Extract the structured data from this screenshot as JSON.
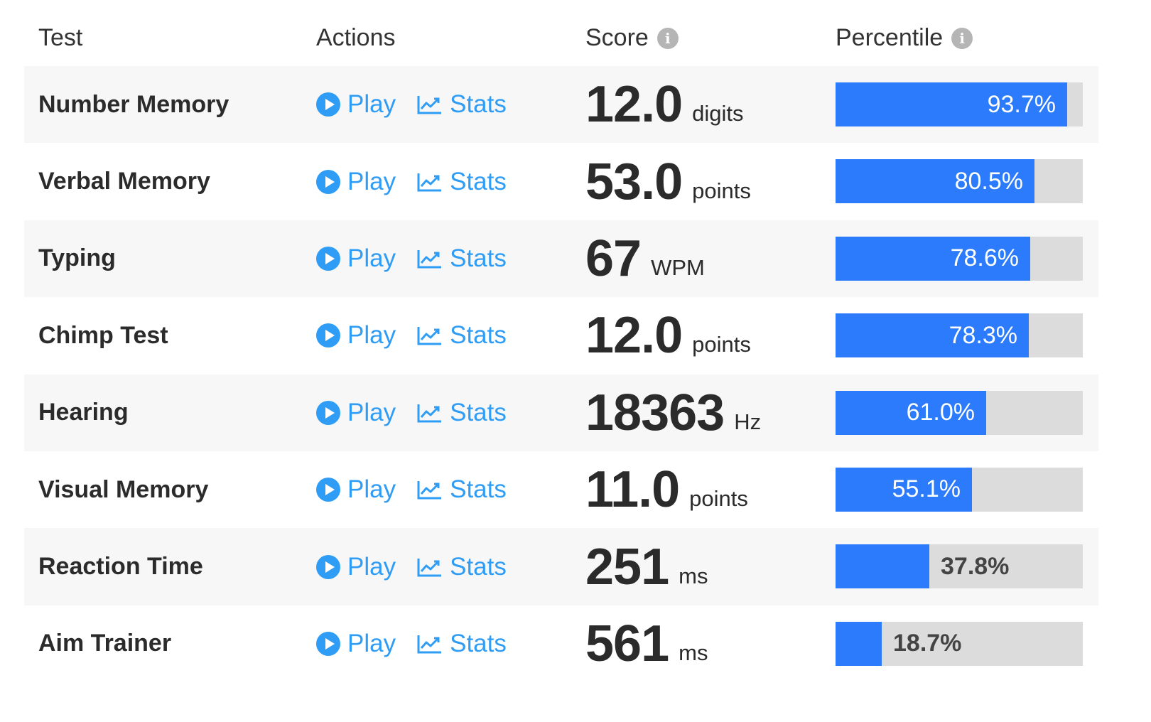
{
  "headers": {
    "test": "Test",
    "actions": "Actions",
    "score": "Score",
    "percentile": "Percentile",
    "info_glyph": "i"
  },
  "actions": {
    "play_label": "Play",
    "stats_label": "Stats"
  },
  "colors": {
    "link": "#2f9df5",
    "bar_fill": "#2b7bfc",
    "bar_track": "#dcdcdc"
  },
  "rows": [
    {
      "name": "Number Memory",
      "score": "12.0",
      "unit": "digits",
      "percentile": 93.7,
      "percentile_label": "93.7%"
    },
    {
      "name": "Verbal Memory",
      "score": "53.0",
      "unit": "points",
      "percentile": 80.5,
      "percentile_label": "80.5%"
    },
    {
      "name": "Typing",
      "score": "67",
      "unit": "WPM",
      "percentile": 78.6,
      "percentile_label": "78.6%"
    },
    {
      "name": "Chimp Test",
      "score": "12.0",
      "unit": "points",
      "percentile": 78.3,
      "percentile_label": "78.3%"
    },
    {
      "name": "Hearing",
      "score": "18363",
      "unit": "Hz",
      "percentile": 61.0,
      "percentile_label": "61.0%"
    },
    {
      "name": "Visual Memory",
      "score": "11.0",
      "unit": "points",
      "percentile": 55.1,
      "percentile_label": "55.1%"
    },
    {
      "name": "Reaction Time",
      "score": "251",
      "unit": "ms",
      "percentile": 37.8,
      "percentile_label": "37.8%"
    },
    {
      "name": "Aim Trainer",
      "score": "561",
      "unit": "ms",
      "percentile": 18.7,
      "percentile_label": "18.7%"
    }
  ]
}
